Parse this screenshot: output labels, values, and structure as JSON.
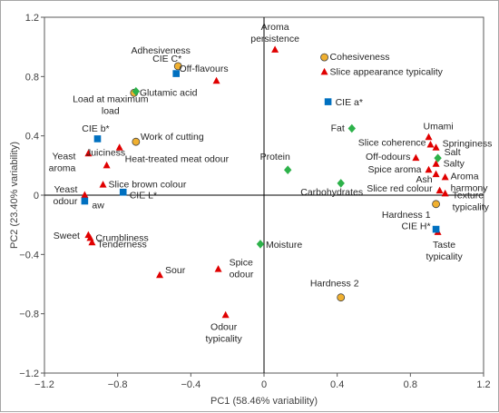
{
  "chart_data": {
    "type": "scatter",
    "xlabel": "PC1 (58.46% variability)",
    "ylabel": "PC2 (23.40% variability)",
    "xlim": [
      -1.2,
      1.2
    ],
    "ylim": [
      -1.2,
      1.2
    ],
    "xticks": [
      -1.2,
      -0.8,
      -0.4,
      0,
      0.4,
      0.8,
      1.2
    ],
    "yticks": [
      -1.2,
      -0.8,
      -0.4,
      0,
      0.4,
      0.8,
      1.2
    ],
    "xtick_labels": [
      "−1.2",
      "−0.8",
      "−0.4",
      "0",
      "0.4",
      "0.8",
      "1.2"
    ],
    "ytick_labels": [
      "−1.2",
      "−0.8",
      "−0.4",
      "0",
      "0.4",
      "0.8",
      "1.2"
    ],
    "grid": false,
    "legend": "none",
    "marker_colors": {
      "sensory": "#e00000",
      "color": "#0070c0",
      "texture": "#f0b030",
      "chemical": "#2db24a"
    },
    "series": [
      {
        "marker": "triangle",
        "color_key": "sensory",
        "points": [
          {
            "label": "Aroma persistence",
            "lines": [
              "Aroma",
              "persistence"
            ],
            "x": 0.06,
            "y": 0.98
          },
          {
            "label": "Off-flavours",
            "lines": [
              "Off-flavours"
            ],
            "x": -0.26,
            "y": 0.77
          },
          {
            "label": "Slice appearance typicality",
            "lines": [
              "Slice appearance typicality"
            ],
            "x": 0.33,
            "y": 0.83
          },
          {
            "label": "Heat-treated meat odour",
            "lines": [
              "Heat-treated meat odour"
            ],
            "x": -0.79,
            "y": 0.32
          },
          {
            "label": "Yeast aroma",
            "lines": [
              "Yeast",
              "aroma"
            ],
            "x": -0.96,
            "y": 0.28
          },
          {
            "label": "Juiciness",
            "lines": [
              "Juiciness"
            ],
            "x": -0.86,
            "y": 0.2
          },
          {
            "label": "Slice brown colour",
            "lines": [
              "Slice brown colour"
            ],
            "x": -0.88,
            "y": 0.07
          },
          {
            "label": "Yeast odour",
            "lines": [
              "Yeast",
              "odour"
            ],
            "x": -0.98,
            "y": 0.0
          },
          {
            "label": "Umami",
            "lines": [
              "Umami"
            ],
            "x": 0.9,
            "y": 0.39
          },
          {
            "label": "Springiness",
            "lines": [
              "Springiness"
            ],
            "x": 0.94,
            "y": 0.32
          },
          {
            "label": "Slice coherence",
            "lines": [
              "Slice coherence"
            ],
            "x": 0.91,
            "y": 0.34
          },
          {
            "label": "Off-odours",
            "lines": [
              "Off-odours"
            ],
            "x": 0.83,
            "y": 0.25
          },
          {
            "label": "Salty",
            "lines": [
              "Salty"
            ],
            "x": 0.94,
            "y": 0.21
          },
          {
            "label": "Spice aroma",
            "lines": [
              "Spice aroma"
            ],
            "x": 0.9,
            "y": 0.17
          },
          {
            "label": "Ash",
            "lines": [
              "Ash"
            ],
            "x": 0.94,
            "y": 0.14
          },
          {
            "label": "Aroma harmony",
            "lines": [
              "Aroma",
              "harmony"
            ],
            "x": 0.99,
            "y": 0.12
          },
          {
            "label": "Slice red colour",
            "lines": [
              "Slice red colour"
            ],
            "x": 0.96,
            "y": 0.03
          },
          {
            "label": "Texture typicality",
            "lines": [
              "Texture",
              "typicality"
            ],
            "x": 0.99,
            "y": 0.01
          },
          {
            "label": "Taste typicality",
            "lines": [
              "Taste",
              "typicality"
            ],
            "x": 0.95,
            "y": -0.25
          },
          {
            "label": "Sweet",
            "lines": [
              "Sweet"
            ],
            "x": -0.96,
            "y": -0.27
          },
          {
            "label": "Crumbliness",
            "lines": [
              "Crumbliness"
            ],
            "x": -0.95,
            "y": -0.29
          },
          {
            "label": "Tenderness",
            "lines": [
              "Tenderness"
            ],
            "x": -0.94,
            "y": -0.32
          },
          {
            "label": "Sour",
            "lines": [
              "Sour"
            ],
            "x": -0.57,
            "y": -0.54
          },
          {
            "label": "Spice odour",
            "lines": [
              "Spice",
              "odour"
            ],
            "x": -0.25,
            "y": -0.5
          },
          {
            "label": "Odour typicality",
            "lines": [
              "Odour",
              "typicality"
            ],
            "x": -0.21,
            "y": -0.81
          }
        ]
      },
      {
        "marker": "square",
        "color_key": "color",
        "points": [
          {
            "label": "CIE C*",
            "lines": [
              "CIE C*"
            ],
            "x": -0.48,
            "y": 0.82
          },
          {
            "label": "CIE a*",
            "lines": [
              "CIE a*"
            ],
            "x": 0.35,
            "y": 0.63
          },
          {
            "label": "CIE b*",
            "lines": [
              "CIE b*"
            ],
            "x": -0.91,
            "y": 0.38
          },
          {
            "label": "aw",
            "lines": [
              "aw"
            ],
            "x": -0.98,
            "y": -0.04
          },
          {
            "label": "CIE L*",
            "lines": [
              "CIE L*"
            ],
            "x": -0.77,
            "y": 0.02
          },
          {
            "label": "CIE H*",
            "lines": [
              "CIE H*"
            ],
            "x": 0.94,
            "y": -0.23
          }
        ]
      },
      {
        "marker": "circle",
        "color_key": "texture",
        "points": [
          {
            "label": "Adhesiveness",
            "lines": [
              "Adhesiveness"
            ],
            "x": -0.47,
            "y": 0.87
          },
          {
            "label": "Cohesiveness",
            "lines": [
              "Cohesiveness"
            ],
            "x": 0.33,
            "y": 0.93
          },
          {
            "label": "Load at maximum load",
            "lines": [
              "Load at maximum",
              "load"
            ],
            "x": -0.71,
            "y": 0.69
          },
          {
            "label": "Work of cutting",
            "lines": [
              "Work of cutting"
            ],
            "x": -0.7,
            "y": 0.36
          },
          {
            "label": "Hardness 1",
            "lines": [
              "Hardness 1"
            ],
            "x": 0.94,
            "y": -0.06
          },
          {
            "label": "Hardness 2",
            "lines": [
              "Hardness 2"
            ],
            "x": 0.42,
            "y": -0.69
          }
        ]
      },
      {
        "marker": "diamond",
        "color_key": "chemical",
        "points": [
          {
            "label": "Glutamic acid",
            "lines": [
              "Glutamic acid"
            ],
            "x": -0.7,
            "y": 0.7
          },
          {
            "label": "Fat",
            "lines": [
              "Fat"
            ],
            "x": 0.48,
            "y": 0.45
          },
          {
            "label": "Protein",
            "lines": [
              "Protein"
            ],
            "x": 0.13,
            "y": 0.17
          },
          {
            "label": "Carbohydrates",
            "lines": [
              "Carbohydrates"
            ],
            "x": 0.42,
            "y": 0.08
          },
          {
            "label": "Moisture",
            "lines": [
              "Moisture"
            ],
            "x": -0.02,
            "y": -0.33
          },
          {
            "label": "Salt",
            "lines": [
              "Salt"
            ],
            "x": 0.95,
            "y": 0.25
          }
        ]
      }
    ]
  }
}
